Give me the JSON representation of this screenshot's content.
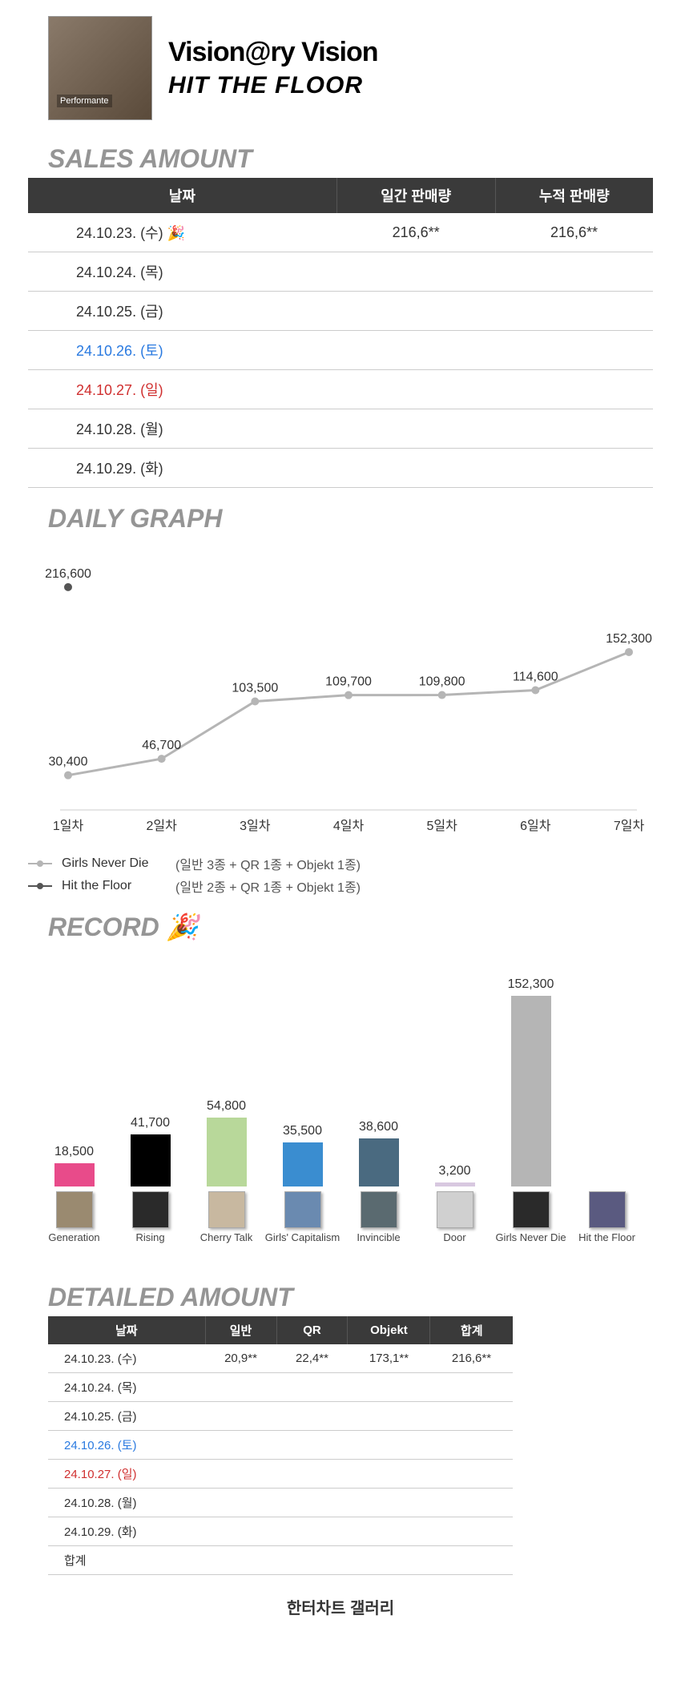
{
  "header": {
    "title1": "Vision@ry Vision",
    "title2": "HIT THE FLOOR"
  },
  "sections": {
    "sales": "SALES AMOUNT",
    "daily": "DAILY GRAPH",
    "record": "RECORD 🎉",
    "detailed": "DETAILED AMOUNT"
  },
  "sales_table": {
    "headers": [
      "날짜",
      "일간 판매량",
      "누적 판매량"
    ],
    "rows": [
      {
        "date": "24.10.23. (수) 🎉",
        "daily": "216,6**",
        "cum": "216,6**",
        "cls": ""
      },
      {
        "date": "24.10.24. (목)",
        "daily": "",
        "cum": "",
        "cls": ""
      },
      {
        "date": "24.10.25. (금)",
        "daily": "",
        "cum": "",
        "cls": ""
      },
      {
        "date": "24.10.26. (토)",
        "daily": "",
        "cum": "",
        "cls": "sat"
      },
      {
        "date": "24.10.27. (일)",
        "daily": "",
        "cum": "",
        "cls": "sun"
      },
      {
        "date": "24.10.28. (월)",
        "daily": "",
        "cum": "",
        "cls": ""
      },
      {
        "date": "24.10.29. (화)",
        "daily": "",
        "cum": "",
        "cls": ""
      }
    ]
  },
  "line_chart": {
    "x_labels": [
      "1일차",
      "2일차",
      "3일차",
      "4일차",
      "5일차",
      "6일차",
      "7일차"
    ],
    "series_grey": {
      "color": "#b5b5b5",
      "values": [
        30400,
        46700,
        103500,
        109700,
        109800,
        114600,
        152300
      ],
      "labels": [
        "30,400",
        "46,700",
        "103,500",
        "109,700",
        "109,800",
        "114,600",
        "152,300"
      ]
    },
    "series_dark": {
      "color": "#555555",
      "values": [
        216600
      ],
      "labels": [
        "216,600"
      ]
    },
    "ymax": 230000,
    "legend": [
      {
        "marker": "grey",
        "name": "Girls Never Die",
        "desc": "(일반 3종 + QR 1종 + Objekt 1종)"
      },
      {
        "marker": "dark",
        "name": "Hit the Floor",
        "desc": "(일반 2종 + QR 1종 + Objekt 1종)"
      }
    ]
  },
  "bar_chart": {
    "ymax": 160000,
    "bars": [
      {
        "label": "Generation",
        "value": 18500,
        "value_label": "18,500",
        "color": "#e84b8a",
        "thumb": "#9a8a70"
      },
      {
        "label": "Rising",
        "value": 41700,
        "value_label": "41,700",
        "color": "#000000",
        "thumb": "#2a2a2a"
      },
      {
        "label": "Cherry Talk",
        "value": 54800,
        "value_label": "54,800",
        "color": "#b8d89a",
        "thumb": "#c8b8a0"
      },
      {
        "label": "Girls' Capitalism",
        "value": 35500,
        "value_label": "35,500",
        "color": "#3a8dd0",
        "thumb": "#6a8ab0"
      },
      {
        "label": "Invincible",
        "value": 38600,
        "value_label": "38,600",
        "color": "#4a6a80",
        "thumb": "#5a6a70"
      },
      {
        "label": "Door",
        "value": 3200,
        "value_label": "3,200",
        "color": "#d8c8e0",
        "thumb": "#d0d0d0"
      },
      {
        "label": "Girls Never Die",
        "value": 152300,
        "value_label": "152,300",
        "color": "#b5b5b5",
        "thumb": "#2a2a2a"
      },
      {
        "label": "Hit the Floor",
        "value": 0,
        "value_label": "",
        "color": "#555555",
        "thumb": "#5a5a80"
      }
    ]
  },
  "detailed_table": {
    "headers": [
      "날짜",
      "일반",
      "QR",
      "Objekt",
      "합계"
    ],
    "rows": [
      {
        "date": "24.10.23. (수)",
        "v": [
          "20,9**",
          "22,4**",
          "173,1**",
          "216,6**"
        ],
        "cls": ""
      },
      {
        "date": "24.10.24. (목)",
        "v": [
          "",
          "",
          "",
          ""
        ],
        "cls": ""
      },
      {
        "date": "24.10.25. (금)",
        "v": [
          "",
          "",
          "",
          ""
        ],
        "cls": ""
      },
      {
        "date": "24.10.26. (토)",
        "v": [
          "",
          "",
          "",
          ""
        ],
        "cls": "sat"
      },
      {
        "date": "24.10.27. (일)",
        "v": [
          "",
          "",
          "",
          ""
        ],
        "cls": "sun"
      },
      {
        "date": "24.10.28. (월)",
        "v": [
          "",
          "",
          "",
          ""
        ],
        "cls": ""
      },
      {
        "date": "24.10.29. (화)",
        "v": [
          "",
          "",
          "",
          ""
        ],
        "cls": ""
      },
      {
        "date": "합계",
        "v": [
          "",
          "",
          "",
          ""
        ],
        "cls": ""
      }
    ]
  },
  "footer": "한터차트 갤러리"
}
